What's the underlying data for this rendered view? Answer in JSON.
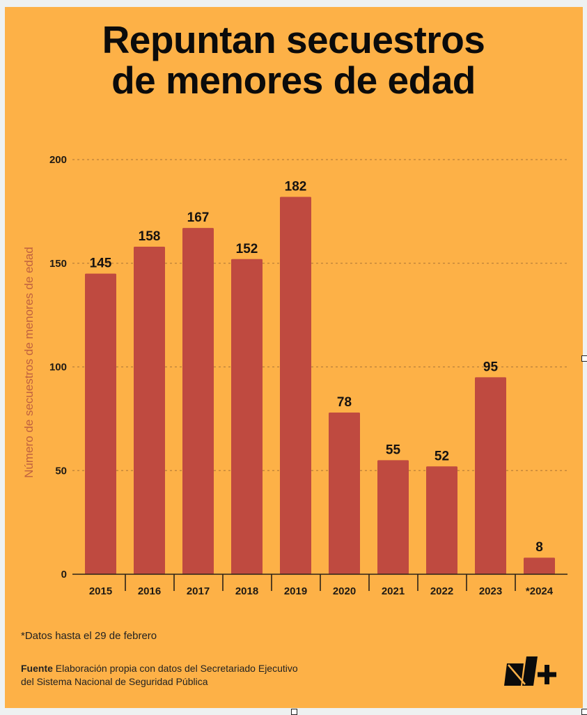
{
  "title": {
    "line1": "Repuntan secuestros",
    "line2": "de menores de edad"
  },
  "chart_data": {
    "type": "bar",
    "title": "Repuntan secuestros de menores de edad",
    "xlabel": "",
    "ylabel": "Número de secuestros de menores de edad",
    "categories": [
      "2015",
      "2016",
      "2017",
      "2018",
      "2019",
      "2020",
      "2021",
      "2022",
      "2023",
      "*2024"
    ],
    "values": [
      145,
      158,
      167,
      152,
      182,
      78,
      55,
      52,
      95,
      8
    ],
    "data_labels": [
      "145",
      "158",
      "167",
      "152",
      "182",
      "78",
      "55",
      "52",
      "95",
      "8"
    ],
    "ylim": [
      0,
      200
    ],
    "yticks": [
      0,
      50,
      100,
      150,
      200
    ],
    "ytick_labels": [
      "0",
      "50",
      "100",
      "150",
      "200"
    ],
    "grid": true,
    "legend": "none",
    "colors": {
      "bar": "#bf4a40",
      "background": "#fdb147",
      "grid": "#b9803a",
      "axis": "#2a2218",
      "ylabel": "#c0613f"
    }
  },
  "footer": {
    "note": "*Datos hasta el 29 de febrero",
    "source_label": "Fuente",
    "source_line1": "Elaboración propia con datos del Secretariado Ejecutivo",
    "source_line2": "del Sistema Nacional de Seguridad Pública",
    "logo": "n-plus-logo"
  }
}
